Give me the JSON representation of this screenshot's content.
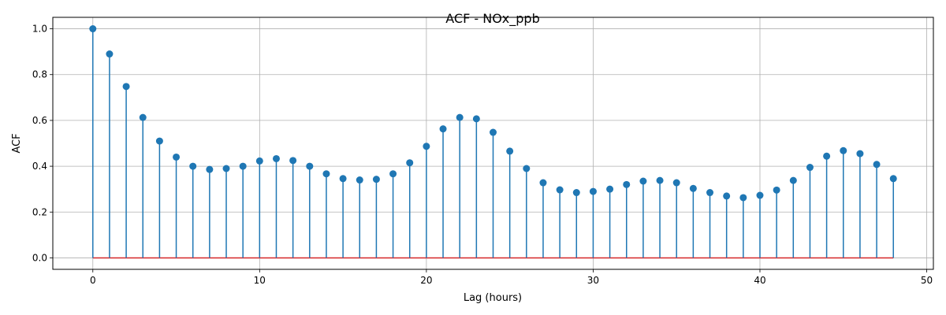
{
  "chart_data": {
    "type": "stem",
    "title": "ACF - NOx_ppb",
    "xlabel": "Lag (hours)",
    "ylabel": "ACF",
    "xlim": [
      -2.4,
      50.4
    ],
    "ylim": [
      -0.05,
      1.05
    ],
    "xticks": [
      0,
      10,
      20,
      30,
      40,
      50
    ],
    "yticks": [
      0.0,
      0.2,
      0.4,
      0.6,
      0.8,
      1.0
    ],
    "xtick_labels": [
      "0",
      "10",
      "20",
      "30",
      "40",
      "50"
    ],
    "ytick_labels": [
      "0.0",
      "0.2",
      "0.4",
      "0.6",
      "0.8",
      "1.0"
    ],
    "grid": true,
    "baseline": 0,
    "colors": {
      "stem": "#1f77b4",
      "marker": "#1f77b4",
      "baseline": "#d62728",
      "grid": "#b0b0b0"
    },
    "series": [
      {
        "x": [
          0,
          1,
          2,
          3,
          4,
          5,
          6,
          7,
          8,
          9,
          10,
          11,
          12,
          13,
          14,
          15,
          16,
          17,
          18,
          19,
          20,
          21,
          22,
          23,
          24,
          25,
          26,
          27,
          28,
          29,
          30,
          31,
          32,
          33,
          34,
          35,
          36,
          37,
          38,
          39,
          40,
          41,
          42,
          43,
          44,
          45,
          46,
          47,
          48
        ],
        "values": [
          1.0,
          0.89,
          0.748,
          0.613,
          0.51,
          0.44,
          0.4,
          0.386,
          0.39,
          0.4,
          0.423,
          0.433,
          0.425,
          0.4,
          0.367,
          0.346,
          0.34,
          0.343,
          0.367,
          0.415,
          0.487,
          0.563,
          0.613,
          0.607,
          0.548,
          0.466,
          0.39,
          0.328,
          0.297,
          0.285,
          0.29,
          0.3,
          0.32,
          0.335,
          0.338,
          0.328,
          0.303,
          0.285,
          0.27,
          0.263,
          0.273,
          0.296,
          0.338,
          0.395,
          0.444,
          0.468,
          0.455,
          0.408,
          0.346
        ]
      }
    ]
  }
}
